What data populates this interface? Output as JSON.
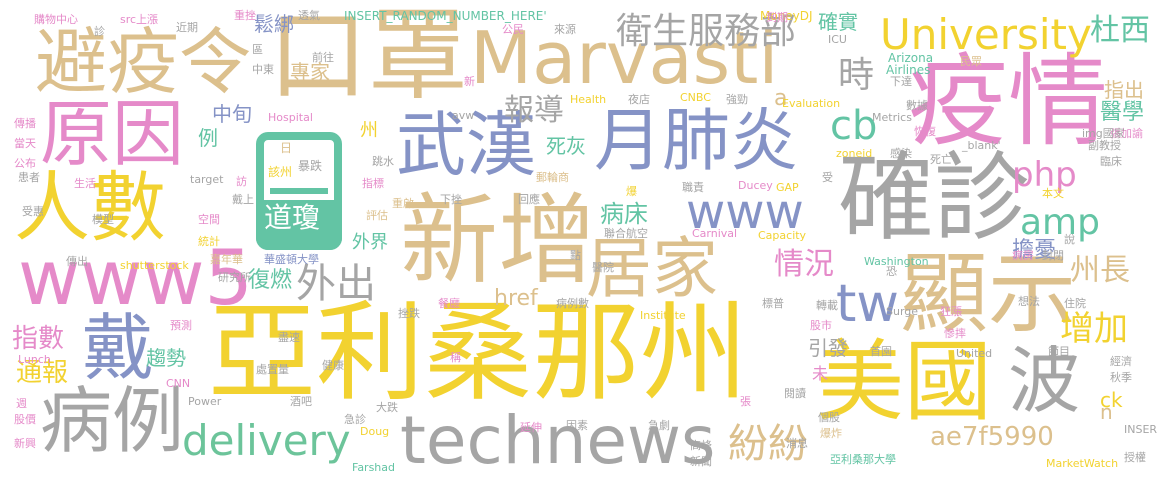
{
  "words": {
    "w1": "亞利桑那州",
    "w2": "口罩",
    "w3": "Marvasti",
    "w4": "疫情",
    "w5": "確診",
    "w6": "新增",
    "w7": "美國",
    "w8": "波",
    "w9": "避疫令",
    "w10": "原因",
    "w11": "人數",
    "w12": "www5",
    "w13": "戴",
    "w14": "病例",
    "w15": "technews",
    "w16": "delivery",
    "w17": "居家",
    "w18": "顯示",
    "w19": "武漢",
    "w20": "月肺炎",
    "w21": "www",
    "w22": "University",
    "w23": "衛生服務部",
    "w24": "杜西",
    "w25": "php",
    "w26": "amp",
    "w27": "tw",
    "w28": "cb",
    "w29": "日",
    "w30": "道瓊",
    "w31": "外出",
    "w32": "時",
    "w33": "報導",
    "w34": "紛紛",
    "w35": "情況",
    "w36": "增加",
    "w37": "州長",
    "w38": "擔憂",
    "w39": "指數",
    "w40": "通報",
    "w41": "趨勢",
    "w42": "復燃",
    "w43": "ae7f5990",
    "w44": "病床",
    "w45": "死灰",
    "w46": "確實",
    "w47": "鬆綁",
    "w48": "專家",
    "w49": "醫學",
    "w50": "指出",
    "w51": "引發",
    "w52": "href",
    "w53": "ck",
    "w54": "n",
    "w55": "a",
    "w56": "中旬",
    "w57": "例",
    "w58": "州",
    "w59": "未",
    "w60": "外界",
    "w61": "INSERT_RANDOM_NUMBER_HERE'",
    "w62": "MoneyDJ",
    "w63": "購物中心",
    "w64": "src上漲",
    "w65": "近期",
    "w66": "重挫",
    "w67": "透氣",
    "w68": "到期",
    "w69": "ICU",
    "w70": "公民",
    "w71": "來源",
    "w72": "Arizona",
    "w73": "Airlines",
    "w74": "民眾",
    "w75": "下達",
    "w76": "Health",
    "w77": "夜店",
    "w78": "CNBC",
    "w79": "強勁",
    "w80": "Evaluation",
    "w81": "Metrics",
    "w82": "張加諭",
    "w83": "Hospital",
    "w84": "avw",
    "w85": "數據",
    "w86": "恢復",
    "w87": "img國家",
    "w88": "副教授",
    "w89": "zoneid",
    "w90": "感染",
    "w91": "死亡",
    "w92": "_blank'",
    "w93": "臨床",
    "w94": "本文",
    "w95": "傳播",
    "w96": "當天",
    "w97": "公布",
    "w98": "患者",
    "w99": "受惠",
    "w100": "生活",
    "w101": "模型",
    "w102": "空間",
    "w103": "統計",
    "w104": "target",
    "w105": "評估",
    "w106": "下挫",
    "w107": "聯合航空",
    "w108": "Carnival",
    "w109": "Capacity",
    "w110": "GAP",
    "w111": "Ducey",
    "w112": "職責",
    "w113": "shutterstock",
    "w114": "華盛頓大學",
    "w115": "嘉年華",
    "w116": "醫院",
    "w117": "Washington",
    "w118": "病房",
    "w119": "封閉",
    "w120": "研究所",
    "w121": "挫跌",
    "w122": "餐廳",
    "w123": "病例數",
    "w124": "標普",
    "w125": "轉載",
    "w126": "Surge",
    "w127": "狂漲",
    "w128": "想法",
    "w129": "住院",
    "w130": "Institute",
    "w131": "股市",
    "w132": "首園",
    "w133": "United",
    "w134": "慘摔",
    "w135": "節目",
    "w136": "經濟",
    "w137": "秋季",
    "w138": "預測",
    "w139": "盡速",
    "w140": "處置量",
    "w141": "健康",
    "w142": "Lunch",
    "w143": "CNN",
    "w144": "Power",
    "w145": "酒吧",
    "w146": "股價",
    "w147": "週",
    "w148": "急診",
    "w149": "大跌",
    "w150": "閱讀",
    "w151": "個股",
    "w152": "爆炸",
    "w153": "INSER",
    "w154": "Doug",
    "w155": "因素",
    "w156": "延伸",
    "w157": "急劇",
    "w158": "高峰",
    "w159": "新聞",
    "w160": "消息",
    "w161": "亞利桑那大學",
    "w162": "MarketWatch",
    "w163": "授權",
    "w164": "Farshad",
    "w165": "新興",
    "w166": "傳出",
    "w167": "跳水",
    "w168": "重啟",
    "w169": "指標",
    "w170": "郵輪商",
    "w171": "回應",
    "w172": "爆",
    "w173": "該州",
    "w174": "暴跌",
    "w175": "區",
    "w176": "中東",
    "w177": "前往",
    "w178": "診",
    "w179": "新",
    "w180": "訪",
    "w181": "戴上",
    "w182": "受",
    "w183": "說",
    "w184": "恐",
    "w185": "點",
    "w186": "張",
    "w187": "稱"
  }
}
